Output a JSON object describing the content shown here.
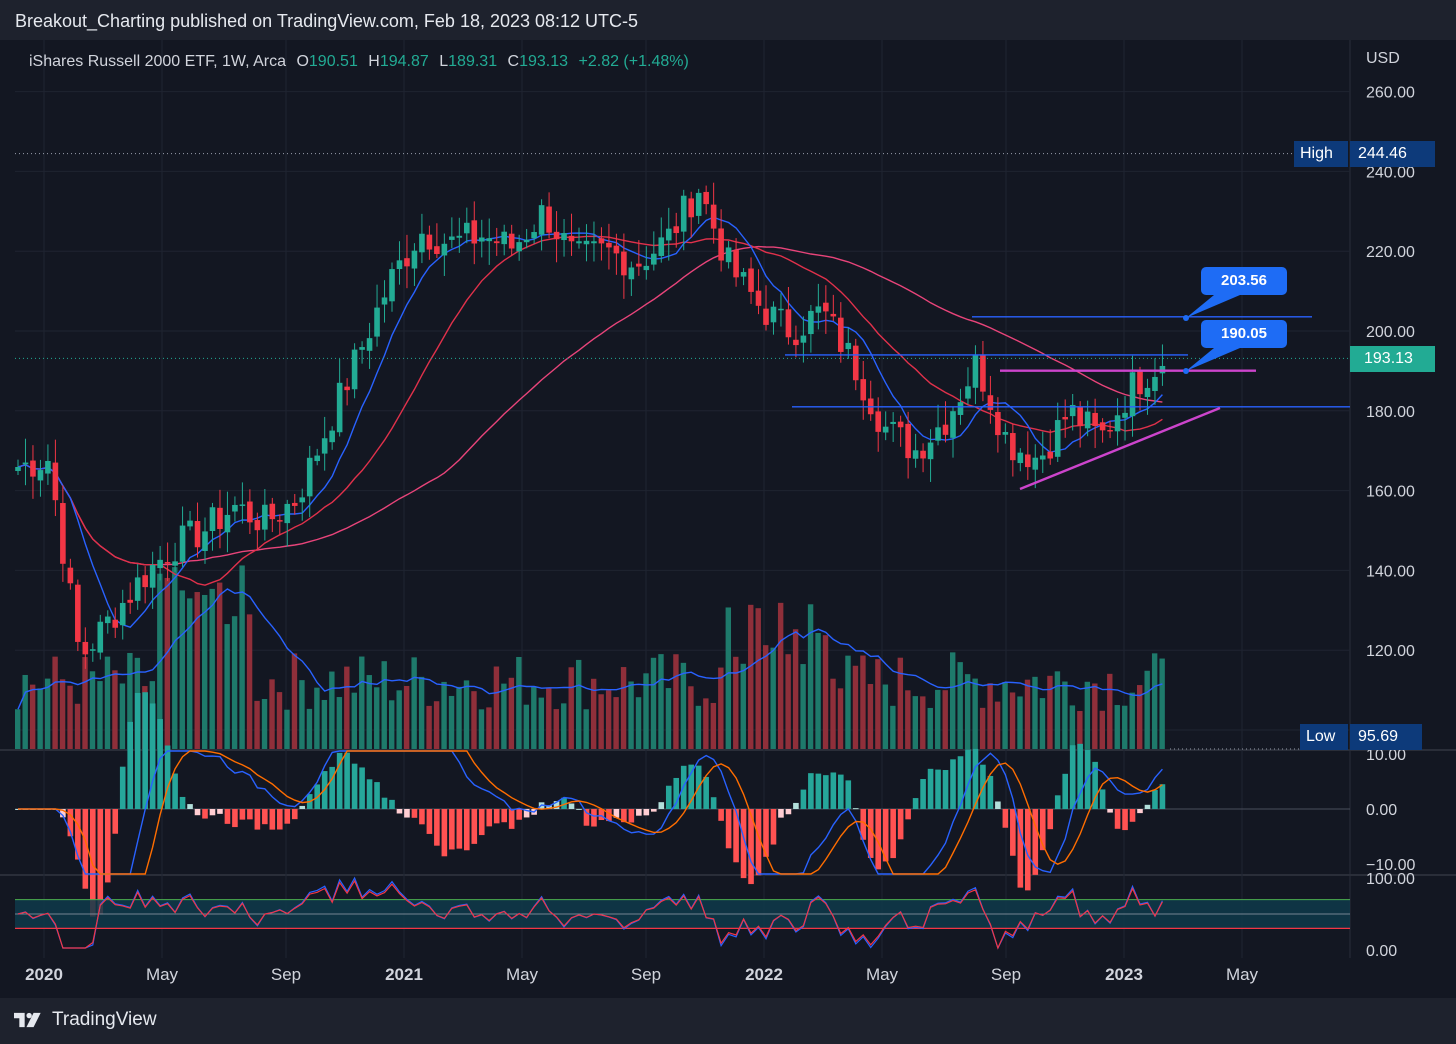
{
  "header": {
    "publisher": "Breakout_Charting published on TradingView.com, Feb 18, 2023 08:12 UTC-5"
  },
  "legend": {
    "symbol": "iShares Russell 2000 ETF, 1W, Arca",
    "open_label": "O",
    "open": "190.51",
    "high_label": "H",
    "high": "194.87",
    "low_label": "L",
    "low": "189.31",
    "close_label": "C",
    "close": "193.13",
    "change": "+2.82 (+1.48%)"
  },
  "price_axis": {
    "currency": "USD",
    "ticks": [
      "260.00",
      "240.00",
      "220.00",
      "200.00",
      "180.00",
      "160.00",
      "140.00",
      "120.00",
      "100.00"
    ]
  },
  "macd_axis": {
    "ticks": [
      "10.00",
      "0.00",
      "−10.00"
    ]
  },
  "rsi_axis": {
    "ticks": [
      "100.00",
      "0.00"
    ]
  },
  "time_axis": {
    "labels": [
      {
        "text": "2020",
        "bold": true
      },
      {
        "text": "May",
        "bold": false
      },
      {
        "text": "Sep",
        "bold": false
      },
      {
        "text": "2021",
        "bold": true
      },
      {
        "text": "May",
        "bold": false
      },
      {
        "text": "Sep",
        "bold": false
      },
      {
        "text": "2022",
        "bold": true
      },
      {
        "text": "May",
        "bold": false
      },
      {
        "text": "Sep",
        "bold": false
      },
      {
        "text": "2023",
        "bold": true
      },
      {
        "text": "May",
        "bold": false
      }
    ]
  },
  "price_tags": {
    "high_label": "High",
    "high_value": "244.46",
    "low_label": "Low",
    "low_value": "95.69",
    "last_value": "193.13"
  },
  "annotations": {
    "callout_1": "203.56",
    "callout_2": "190.05"
  },
  "footer": {
    "brand": "TradingView"
  },
  "colors": {
    "background": "#131722",
    "up": "#22ab94",
    "down": "#f23645",
    "sma_fast": "#2962ff",
    "sma_mid": "#e0314b",
    "sma_slow": "#e8447a",
    "callout": "#1e6cf5",
    "trendline": "#cc44cc",
    "level": "#2962ff"
  },
  "chart_data": {
    "type": "candlestick",
    "symbol": "iShares Russell 2000 ETF",
    "interval": "1W",
    "exchange": "Arca",
    "y_range": [
      95.69,
      260
    ],
    "key_levels": {
      "high": 244.46,
      "low": 95.69,
      "last": 193.13,
      "callout_upper": 203.56,
      "callout_lower": 190.05,
      "support_1": 181.0
    },
    "anchors": [
      [
        "2020-01",
        166
      ],
      [
        "2020-02",
        168
      ],
      [
        "2020-03",
        118
      ],
      [
        "2020-04",
        128
      ],
      [
        "2020-05",
        138
      ],
      [
        "2020-06",
        146
      ],
      [
        "2020-07",
        150
      ],
      [
        "2020-08",
        156
      ],
      [
        "2020-09",
        152
      ],
      [
        "2020-10",
        158
      ],
      [
        "2020-11",
        176
      ],
      [
        "2020-12",
        194
      ],
      [
        "2021-01",
        212
      ],
      [
        "2021-02",
        225
      ],
      [
        "2021-03",
        222
      ],
      [
        "2021-04",
        224
      ],
      [
        "2021-05",
        221
      ],
      [
        "2021-06",
        230
      ],
      [
        "2021-07",
        218
      ],
      [
        "2021-08",
        220
      ],
      [
        "2021-09",
        217
      ],
      [
        "2021-10",
        223
      ],
      [
        "2021-11",
        236
      ],
      [
        "2021-12",
        216
      ],
      [
        "2022-01",
        206
      ],
      [
        "2022-02",
        200
      ],
      [
        "2022-03",
        205
      ],
      [
        "2022-04",
        192
      ],
      [
        "2022-05",
        176
      ],
      [
        "2022-06",
        170
      ],
      [
        "2022-07",
        178
      ],
      [
        "2022-08",
        192
      ],
      [
        "2022-09",
        172
      ],
      [
        "2022-10",
        168
      ],
      [
        "2022-11",
        180
      ],
      [
        "2022-12",
        173
      ],
      [
        "2023-01",
        186
      ],
      [
        "2023-02",
        193
      ]
    ],
    "macd_range": [
      -12,
      12
    ],
    "rsi_range": [
      0,
      100
    ],
    "rsi_levels": [
      70,
      30
    ]
  }
}
